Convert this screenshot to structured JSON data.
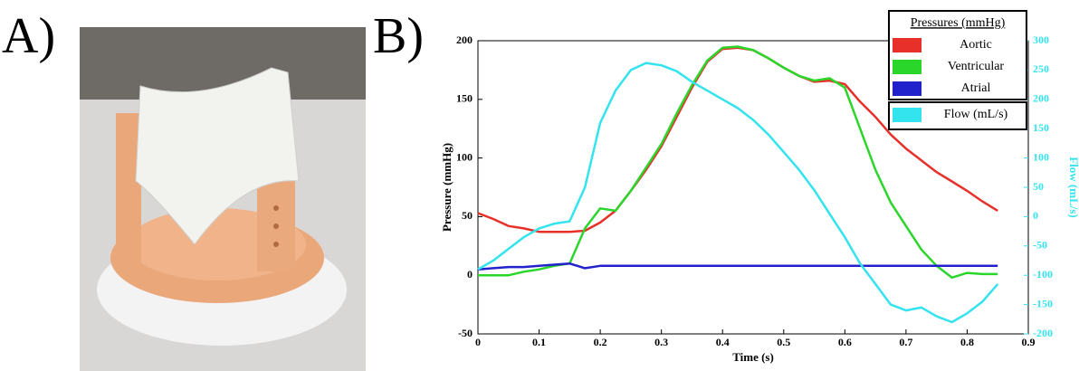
{
  "panel_labels": [
    "A)",
    "B)"
  ],
  "chart_data": {
    "type": "line",
    "xlabel": "Time (s)",
    "ylabel": "Pressure (mmHg)",
    "y2label": "Flow (mL/s)",
    "legend_title": "Pressures (mmHg)",
    "legend_position": "upper right",
    "x": [
      0,
      0.025,
      0.05,
      0.075,
      0.1,
      0.125,
      0.15,
      0.175,
      0.2,
      0.225,
      0.25,
      0.275,
      0.3,
      0.325,
      0.35,
      0.375,
      0.4,
      0.425,
      0.45,
      0.475,
      0.5,
      0.525,
      0.55,
      0.575,
      0.6,
      0.625,
      0.65,
      0.675,
      0.7,
      0.725,
      0.75,
      0.775,
      0.8,
      0.825,
      0.85
    ],
    "xlim": [
      0,
      0.9
    ],
    "xticks": [
      0,
      0.1,
      0.2,
      0.3,
      0.4,
      0.5,
      0.6,
      0.7,
      0.8,
      0.9
    ],
    "ylim": [
      -50,
      200
    ],
    "yticks": [
      -50,
      0,
      50,
      100,
      150,
      200
    ],
    "y2lim": [
      -200,
      300
    ],
    "y2ticks": [
      -200,
      -150,
      -100,
      -50,
      0,
      50,
      100,
      150,
      200,
      250,
      300
    ],
    "series": [
      {
        "name": "Aortic",
        "color": "#e8302a",
        "values": [
          53,
          48,
          42,
          40,
          37,
          37,
          37,
          38,
          45,
          55,
          72,
          90,
          110,
          135,
          160,
          182,
          193,
          194,
          192,
          185,
          177,
          170,
          165,
          166,
          163,
          148,
          135,
          120,
          108,
          98,
          88,
          80,
          72,
          63,
          55
        ]
      },
      {
        "name": "Ventricular",
        "color": "#2bd62b",
        "values": [
          0,
          0,
          0,
          3,
          5,
          8,
          10,
          40,
          57,
          55,
          72,
          92,
          112,
          138,
          162,
          183,
          194,
          195,
          192,
          185,
          177,
          170,
          166,
          168,
          160,
          125,
          90,
          62,
          42,
          22,
          8,
          -2,
          2,
          1,
          1
        ]
      },
      {
        "name": "Atrial",
        "color": "#2222cc",
        "values": [
          5,
          6,
          7,
          7,
          8,
          9,
          10,
          6,
          8,
          8,
          8,
          8,
          8,
          8,
          8,
          8,
          8,
          8,
          8,
          8,
          8,
          8,
          8,
          8,
          8,
          8,
          8,
          8,
          8,
          8,
          8,
          8,
          8,
          8,
          8
        ]
      },
      {
        "name": "Flow (mL/s)",
        "color": "#33e3ee",
        "axis": "y2",
        "values": [
          -90,
          -75,
          -55,
          -35,
          -20,
          -12,
          -8,
          50,
          160,
          215,
          250,
          262,
          258,
          248,
          230,
          215,
          200,
          185,
          165,
          140,
          110,
          80,
          45,
          5,
          -35,
          -80,
          -115,
          -150,
          -160,
          -155,
          -170,
          -180,
          -165,
          -145,
          -115
        ]
      }
    ]
  }
}
